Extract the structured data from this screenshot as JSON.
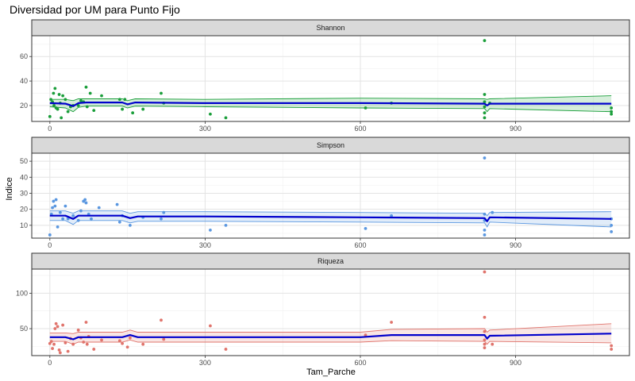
{
  "chart_data": {
    "type": "scatter",
    "title": "Diversidad por UM para Punto Fijo",
    "xlabel": "Tam_Parche",
    "ylabel": "Indice",
    "xlim": [
      -35,
      1120
    ],
    "x_ticks": [
      0,
      300,
      600,
      900
    ],
    "x_tick_labels": [
      "0",
      "300",
      "600",
      "900"
    ],
    "grid": true,
    "colors": {
      "Shannon": "#1a9e3a",
      "Simpson": "#5a97e0",
      "Riqueza": "#e0746c",
      "trend": "#0000cc",
      "strip_fill": "#d9d9d9"
    },
    "panels": [
      {
        "name": "Shannon",
        "ylim": [
          7,
          77
        ],
        "y_ticks": [
          20,
          40,
          60
        ],
        "y_tick_labels": [
          "20",
          "40",
          "60"
        ],
        "points": [
          [
            0,
            11
          ],
          [
            2,
            25
          ],
          [
            5,
            23
          ],
          [
            7,
            30
          ],
          [
            8,
            20
          ],
          [
            10,
            34
          ],
          [
            12,
            18
          ],
          [
            15,
            17
          ],
          [
            18,
            29
          ],
          [
            20,
            22
          ],
          [
            22,
            10
          ],
          [
            25,
            28
          ],
          [
            30,
            25
          ],
          [
            35,
            15
          ],
          [
            40,
            19
          ],
          [
            45,
            20
          ],
          [
            55,
            20
          ],
          [
            60,
            24
          ],
          [
            65,
            23
          ],
          [
            70,
            35
          ],
          [
            72,
            19
          ],
          [
            78,
            30
          ],
          [
            85,
            16
          ],
          [
            100,
            28
          ],
          [
            135,
            25
          ],
          [
            140,
            17
          ],
          [
            145,
            25
          ],
          [
            160,
            14
          ],
          [
            180,
            17
          ],
          [
            215,
            30
          ],
          [
            220,
            22
          ],
          [
            310,
            13
          ],
          [
            340,
            10
          ],
          [
            610,
            18
          ],
          [
            660,
            22
          ],
          [
            840,
            73
          ],
          [
            840,
            29
          ],
          [
            840,
            23
          ],
          [
            840,
            19
          ],
          [
            840,
            14
          ],
          [
            840,
            10
          ],
          [
            850,
            22
          ],
          [
            1085,
            18
          ],
          [
            1085,
            15
          ],
          [
            1085,
            13
          ]
        ],
        "trend": [
          [
            0,
            22
          ],
          [
            30,
            21.5
          ],
          [
            45,
            19.5
          ],
          [
            55,
            22
          ],
          [
            70,
            22.5
          ],
          [
            100,
            22.5
          ],
          [
            140,
            22.5
          ],
          [
            150,
            21
          ],
          [
            165,
            22.5
          ],
          [
            300,
            22
          ],
          [
            600,
            22
          ],
          [
            840,
            21.5
          ],
          [
            845,
            20
          ],
          [
            850,
            21.5
          ],
          [
            1085,
            21.5
          ]
        ],
        "band_upper": [
          [
            0,
            25
          ],
          [
            30,
            25
          ],
          [
            45,
            24
          ],
          [
            55,
            25.5
          ],
          [
            70,
            25.5
          ],
          [
            100,
            25.5
          ],
          [
            140,
            25.5
          ],
          [
            150,
            24
          ],
          [
            165,
            25.5
          ],
          [
            300,
            25
          ],
          [
            600,
            26
          ],
          [
            840,
            25.5
          ],
          [
            845,
            25
          ],
          [
            850,
            25.5
          ],
          [
            1085,
            28
          ]
        ],
        "band_lower": [
          [
            0,
            19
          ],
          [
            30,
            18
          ],
          [
            45,
            15
          ],
          [
            55,
            18.5
          ],
          [
            70,
            19.5
          ],
          [
            100,
            19.5
          ],
          [
            140,
            19.5
          ],
          [
            150,
            18
          ],
          [
            165,
            19.5
          ],
          [
            300,
            19
          ],
          [
            600,
            18
          ],
          [
            840,
            17.5
          ],
          [
            845,
            15
          ],
          [
            850,
            17.5
          ],
          [
            1085,
            15
          ]
        ]
      },
      {
        "name": "Simpson",
        "ylim": [
          2,
          55
        ],
        "y_ticks": [
          10,
          20,
          30,
          40,
          50
        ],
        "y_tick_labels": [
          "10",
          "20",
          "30",
          "40",
          "50"
        ],
        "points": [
          [
            0,
            4
          ],
          [
            3,
            17
          ],
          [
            5,
            21
          ],
          [
            7,
            25
          ],
          [
            10,
            22
          ],
          [
            12,
            26
          ],
          [
            15,
            9
          ],
          [
            20,
            18
          ],
          [
            25,
            14
          ],
          [
            30,
            22
          ],
          [
            35,
            14
          ],
          [
            45,
            16
          ],
          [
            55,
            13
          ],
          [
            60,
            19
          ],
          [
            65,
            25
          ],
          [
            68,
            26
          ],
          [
            70,
            24
          ],
          [
            75,
            17
          ],
          [
            80,
            14
          ],
          [
            95,
            21
          ],
          [
            130,
            23
          ],
          [
            135,
            12
          ],
          [
            140,
            16
          ],
          [
            155,
            10
          ],
          [
            180,
            15
          ],
          [
            215,
            14
          ],
          [
            220,
            18
          ],
          [
            310,
            7
          ],
          [
            340,
            10
          ],
          [
            610,
            8
          ],
          [
            660,
            16
          ],
          [
            840,
            52
          ],
          [
            840,
            17
          ],
          [
            840,
            13
          ],
          [
            840,
            7
          ],
          [
            840,
            4
          ],
          [
            855,
            18
          ],
          [
            1085,
            14
          ],
          [
            1085,
            10
          ],
          [
            1085,
            6
          ]
        ],
        "trend": [
          [
            0,
            16
          ],
          [
            30,
            16
          ],
          [
            45,
            14
          ],
          [
            55,
            16
          ],
          [
            70,
            16
          ],
          [
            100,
            16
          ],
          [
            140,
            16
          ],
          [
            155,
            14.5
          ],
          [
            170,
            15.5
          ],
          [
            300,
            15.5
          ],
          [
            600,
            15
          ],
          [
            840,
            14.5
          ],
          [
            845,
            12.5
          ],
          [
            850,
            15
          ],
          [
            1085,
            14
          ]
        ],
        "band_upper": [
          [
            0,
            19
          ],
          [
            30,
            19
          ],
          [
            45,
            17.5
          ],
          [
            55,
            19
          ],
          [
            70,
            19
          ],
          [
            100,
            19
          ],
          [
            140,
            19
          ],
          [
            155,
            17.5
          ],
          [
            170,
            18.5
          ],
          [
            300,
            18.5
          ],
          [
            600,
            18
          ],
          [
            840,
            17.5
          ],
          [
            845,
            16
          ],
          [
            850,
            18
          ],
          [
            1085,
            18.5
          ]
        ],
        "band_lower": [
          [
            0,
            13
          ],
          [
            30,
            13
          ],
          [
            45,
            10.5
          ],
          [
            55,
            13
          ],
          [
            70,
            13
          ],
          [
            100,
            13
          ],
          [
            140,
            13
          ],
          [
            155,
            11.5
          ],
          [
            170,
            12.5
          ],
          [
            300,
            12.5
          ],
          [
            600,
            12
          ],
          [
            840,
            11.5
          ],
          [
            845,
            9
          ],
          [
            850,
            12
          ],
          [
            1085,
            9
          ]
        ]
      },
      {
        "name": "Riqueza",
        "ylim": [
          12,
          134
        ],
        "y_ticks": [
          50,
          100
        ],
        "y_tick_labels": [
          "50",
          "100"
        ],
        "points": [
          [
            0,
            29
          ],
          [
            3,
            32
          ],
          [
            5,
            22
          ],
          [
            8,
            28
          ],
          [
            10,
            50
          ],
          [
            12,
            57
          ],
          [
            15,
            53
          ],
          [
            18,
            20
          ],
          [
            20,
            16
          ],
          [
            25,
            55
          ],
          [
            30,
            30
          ],
          [
            35,
            18
          ],
          [
            40,
            36
          ],
          [
            45,
            28
          ],
          [
            55,
            48
          ],
          [
            60,
            37
          ],
          [
            65,
            31
          ],
          [
            70,
            59
          ],
          [
            72,
            28
          ],
          [
            75,
            39
          ],
          [
            85,
            21
          ],
          [
            100,
            34
          ],
          [
            135,
            33
          ],
          [
            140,
            29
          ],
          [
            150,
            24
          ],
          [
            155,
            37
          ],
          [
            180,
            28
          ],
          [
            215,
            62
          ],
          [
            220,
            35
          ],
          [
            310,
            54
          ],
          [
            340,
            21
          ],
          [
            610,
            41
          ],
          [
            660,
            59
          ],
          [
            840,
            130
          ],
          [
            840,
            66
          ],
          [
            840,
            46
          ],
          [
            840,
            34
          ],
          [
            840,
            28
          ],
          [
            840,
            23
          ],
          [
            855,
            28
          ],
          [
            1085,
            26
          ],
          [
            1085,
            21
          ]
        ],
        "trend": [
          [
            0,
            38
          ],
          [
            30,
            38
          ],
          [
            45,
            35
          ],
          [
            55,
            38
          ],
          [
            70,
            38
          ],
          [
            100,
            38
          ],
          [
            140,
            38
          ],
          [
            155,
            41
          ],
          [
            170,
            38
          ],
          [
            300,
            38
          ],
          [
            600,
            38
          ],
          [
            660,
            41
          ],
          [
            840,
            41
          ],
          [
            845,
            36
          ],
          [
            850,
            40
          ],
          [
            1085,
            43
          ]
        ],
        "band_upper": [
          [
            0,
            44
          ],
          [
            30,
            44
          ],
          [
            45,
            43
          ],
          [
            55,
            45
          ],
          [
            70,
            45
          ],
          [
            100,
            45
          ],
          [
            140,
            45
          ],
          [
            155,
            48
          ],
          [
            170,
            45
          ],
          [
            300,
            45
          ],
          [
            600,
            45
          ],
          [
            660,
            49
          ],
          [
            840,
            50
          ],
          [
            845,
            45
          ],
          [
            850,
            48
          ],
          [
            1085,
            57
          ]
        ],
        "band_lower": [
          [
            0,
            32
          ],
          [
            30,
            32
          ],
          [
            45,
            28
          ],
          [
            55,
            31
          ],
          [
            70,
            31
          ],
          [
            100,
            31
          ],
          [
            140,
            31
          ],
          [
            155,
            34
          ],
          [
            170,
            31
          ],
          [
            300,
            31
          ],
          [
            600,
            31
          ],
          [
            660,
            33
          ],
          [
            840,
            32
          ],
          [
            845,
            28
          ],
          [
            850,
            32
          ],
          [
            1085,
            30
          ]
        ]
      }
    ]
  }
}
